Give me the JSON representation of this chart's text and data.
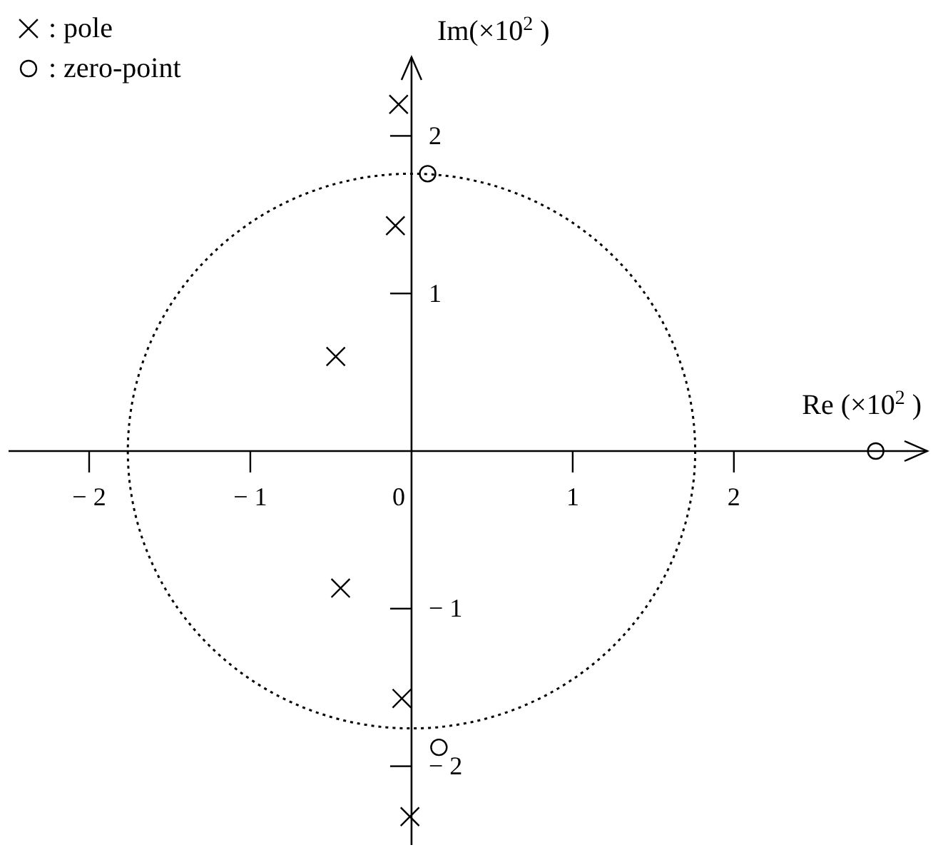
{
  "chart_data": {
    "type": "scatter",
    "xlabel": "Re (×10$^{2}$ )",
    "ylabel": "Im(×10$^{2}$ )",
    "xlim": [
      -2.5,
      3.2
    ],
    "ylim": [
      -2.5,
      2.5
    ],
    "xticks": [
      {
        "value": -2,
        "label": "− 2"
      },
      {
        "value": -1,
        "label": "− 1"
      },
      0,
      1,
      2
    ],
    "yticks": [
      {
        "value": -2,
        "label": "− 2"
      },
      {
        "value": -1,
        "label": "− 1"
      },
      1,
      2
    ],
    "legend": "top left",
    "grid": false,
    "series": [
      {
        "name": ": pole",
        "marker": "cross",
        "color": "#000000",
        "x": [
          -0.08,
          -0.1,
          -0.47,
          -0.44,
          -0.06,
          -0.01
        ],
        "values": [
          2.2,
          1.43,
          0.6,
          -0.87,
          -1.57,
          -2.32
        ]
      },
      {
        "name": ": zero-point",
        "marker": "circle",
        "color": "#000000",
        "x": [
          0.1,
          0.17,
          2.88
        ],
        "values": [
          1.76,
          -1.88,
          0
        ]
      }
    ]
  }
}
